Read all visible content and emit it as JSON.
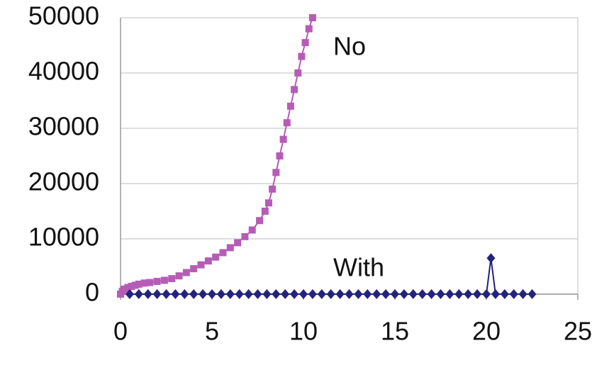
{
  "chart_data": {
    "type": "line",
    "xlim": [
      0,
      25
    ],
    "xticks": [
      0,
      5,
      10,
      15,
      20,
      25
    ],
    "ylim": [
      0,
      50000
    ],
    "yticks": [
      0,
      10000,
      20000,
      30000,
      40000,
      50000
    ],
    "grid": true,
    "series": [
      {
        "name": "No",
        "color": "#b65cb6",
        "marker": "square",
        "x": [
          0,
          0.1,
          0.2,
          0.4,
          0.6,
          0.8,
          1,
          1.3,
          1.6,
          2,
          2.4,
          2.8,
          3.2,
          3.6,
          4,
          4.4,
          4.8,
          5.2,
          5.6,
          6,
          6.4,
          6.8,
          7.2,
          7.6,
          7.9,
          8.1,
          8.3,
          8.5,
          8.7,
          8.9,
          9.1,
          9.3,
          9.5,
          9.7,
          9.9,
          10.1,
          10.3,
          10.5
        ],
        "values": [
          0,
          500,
          900,
          1200,
          1400,
          1600,
          1800,
          2000,
          2100,
          2300,
          2500,
          2800,
          3300,
          3900,
          4600,
          5300,
          6000,
          6700,
          7500,
          8400,
          9300,
          10400,
          11600,
          13300,
          15000,
          16500,
          19000,
          22000,
          25000,
          28000,
          31000,
          34000,
          37000,
          40000,
          43000,
          45500,
          48000,
          50000
        ]
      },
      {
        "name": "With",
        "color": "#23237e",
        "marker": "diamond",
        "x": [
          0.5,
          1,
          1.5,
          2,
          2.5,
          3,
          3.5,
          4,
          4.5,
          5,
          5.5,
          6,
          6.5,
          7,
          7.5,
          8,
          8.5,
          9,
          9.5,
          10,
          10.5,
          11,
          11.5,
          12,
          12.5,
          13,
          13.5,
          14,
          14.5,
          15,
          15.5,
          16,
          16.5,
          17,
          17.5,
          18,
          18.5,
          19,
          19.5,
          20,
          20.25,
          20.5,
          21,
          21.5,
          22,
          22.5
        ],
        "values": [
          0,
          0,
          0,
          0,
          0,
          0,
          0,
          0,
          0,
          0,
          0,
          0,
          0,
          0,
          0,
          0,
          0,
          0,
          0,
          0,
          0,
          0,
          0,
          0,
          0,
          0,
          0,
          0,
          0,
          0,
          0,
          0,
          0,
          0,
          0,
          0,
          0,
          0,
          0,
          0,
          6500,
          0,
          0,
          0,
          0,
          0
        ]
      }
    ]
  }
}
